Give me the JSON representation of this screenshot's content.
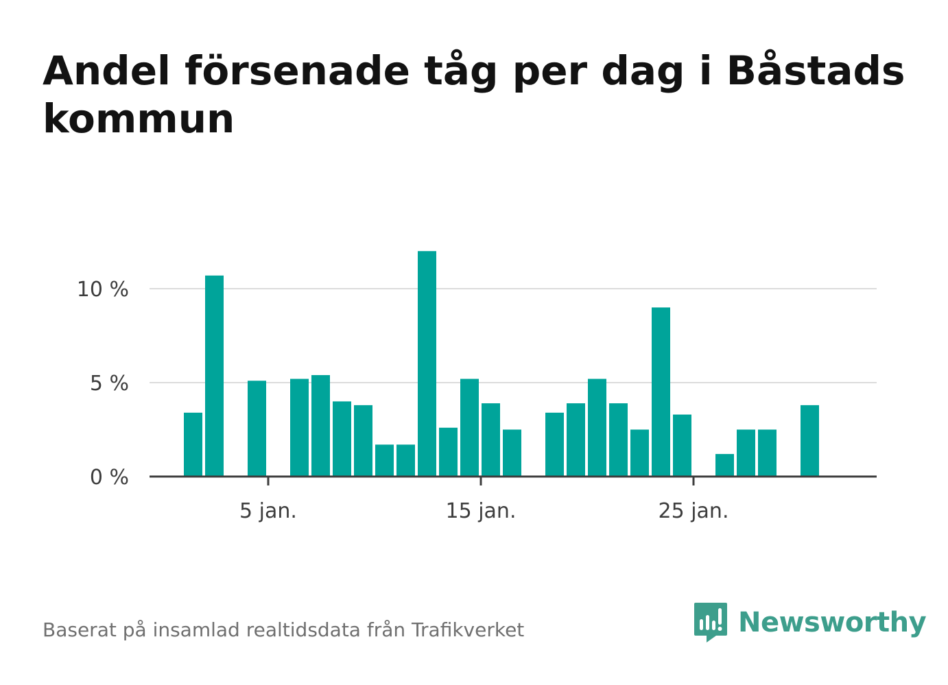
{
  "title": "Andel försenade tåg per dag i Båstads kommun",
  "source": "Baserat på insamlad realtidsdata från Trafikverket",
  "brand": {
    "name": "Newsworthy",
    "icon": "newsworthy-logo-icon",
    "color": "#3d9e8c"
  },
  "colors": {
    "bar": "#00a49a",
    "grid": "#dcdcdc",
    "axis": "#3d3d3d"
  },
  "chart_data": {
    "type": "bar",
    "title": "Andel försenade tåg per dag i Båstads kommun",
    "x": [
      1,
      2,
      3,
      4,
      5,
      6,
      7,
      8,
      9,
      10,
      11,
      12,
      13,
      14,
      15,
      16,
      17,
      18,
      19,
      20,
      21,
      22,
      23,
      24,
      25,
      26,
      27,
      28,
      29,
      30,
      31
    ],
    "values": [
      3.4,
      10.7,
      null,
      5.1,
      null,
      5.2,
      5.4,
      4.0,
      3.8,
      1.7,
      1.7,
      12.0,
      2.6,
      5.2,
      3.9,
      2.5,
      null,
      3.4,
      3.9,
      5.2,
      3.9,
      2.5,
      9.0,
      3.3,
      null,
      1.2,
      2.5,
      2.5,
      null,
      3.8,
      null
    ],
    "xticks": [
      {
        "day": 5,
        "label": "5 jan."
      },
      {
        "day": 15,
        "label": "15 jan."
      },
      {
        "day": 25,
        "label": "25 jan."
      }
    ],
    "yticks": [
      {
        "value": 0,
        "label": "0 %"
      },
      {
        "value": 5,
        "label": "5 %"
      },
      {
        "value": 10,
        "label": "10 %"
      }
    ],
    "ylim": [
      0,
      12.5
    ],
    "xlabel": "",
    "ylabel": "",
    "grid": true
  }
}
